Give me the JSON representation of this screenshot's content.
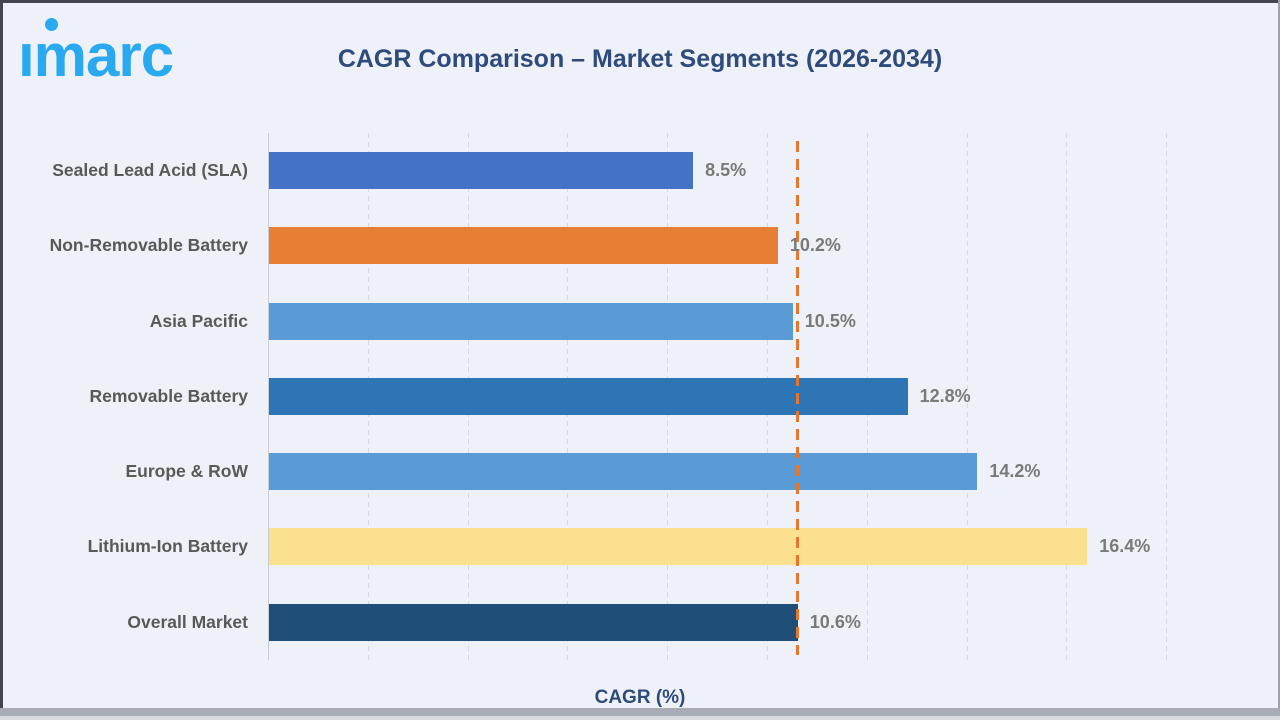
{
  "logo": {
    "text": "imarc"
  },
  "header": {
    "title": "CAGR Comparison – Market Segments (2026-2034)"
  },
  "chart_data": {
    "type": "bar",
    "orientation": "horizontal",
    "title": "CAGR Comparison – Market Segments (2026-2034)",
    "categories": [
      "Sealed Lead Acid (SLA)",
      "Non-Removable Battery",
      "Asia Pacific",
      "Removable Battery",
      "Europe & RoW",
      "Lithium-Ion Battery",
      "Overall Market"
    ],
    "values": [
      8.5,
      10.2,
      10.5,
      12.8,
      14.2,
      16.4,
      10.6
    ],
    "value_labels": [
      "8.5%",
      "10.2%",
      "10.5%",
      "12.8%",
      "14.2%",
      "16.4%",
      "10.6%"
    ],
    "bar_colors": [
      "#4472C4",
      "#E67E33",
      "#5B9BD5",
      "#2E75B6",
      "#5B9BD5",
      "#FBE18F",
      "#1F4E79"
    ],
    "xlabel": "CAGR (%)",
    "xlim": [
      0,
      18.12
    ],
    "gridline_step": 2,
    "grid": true,
    "legend": false,
    "tick_labels_visible": false,
    "reference_line": {
      "value": 10.6,
      "color": "#E8772E",
      "style": "dashed"
    }
  },
  "colors": {
    "background": "#EEF1F7",
    "title": "#2E4B7B",
    "category_label": "#595959",
    "value_label": "#7A7A7A",
    "gridline": "#D6DAE1",
    "logo": "#29A9F0",
    "frame_dark": "#41454E",
    "frame_gray": "#A8ADB5"
  }
}
